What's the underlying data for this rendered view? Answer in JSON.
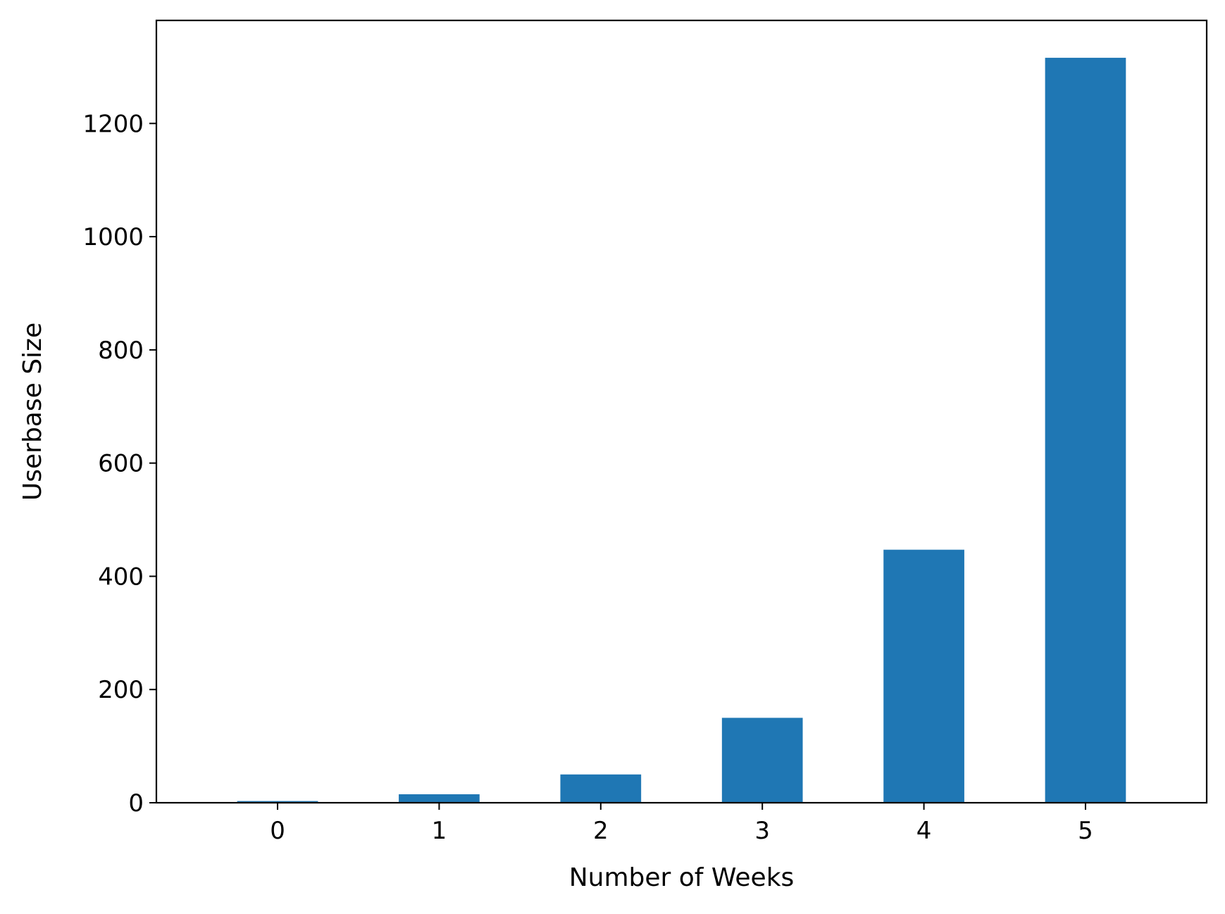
{
  "chart_data": {
    "type": "bar",
    "categories": [
      "0",
      "1",
      "2",
      "3",
      "4",
      "5"
    ],
    "values": [
      3,
      15,
      50,
      150,
      447,
      1316
    ],
    "title": "",
    "xlabel": "Number of Weeks",
    "ylabel": "Userbase Size",
    "ylim": [
      0,
      1382
    ],
    "yticks": [
      0,
      200,
      400,
      600,
      800,
      1000,
      1200
    ],
    "grid": false,
    "legend": "none",
    "bar_color": "#1f77b4"
  }
}
